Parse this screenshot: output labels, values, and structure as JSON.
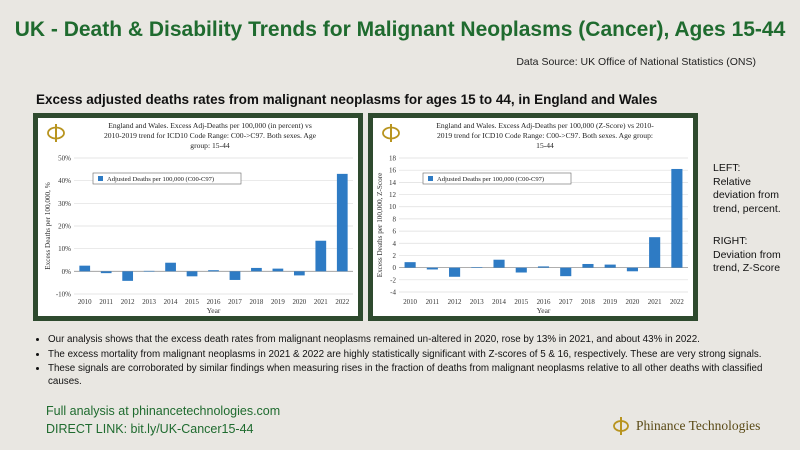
{
  "header": {
    "title": "UK - Death & Disability Trends for Malignant Neoplasms (Cancer), Ages 15-44",
    "source": "Data Source: UK Office of National Statistics (ONS)",
    "subtitle": "Excess adjusted deaths rates from malignant neoplasms for ages 15 to 44, in England and Wales"
  },
  "colors": {
    "title_green": "#1f6b2f",
    "bar_blue": "#2e7bc4",
    "panel_border": "#2e4a2e",
    "logo_gold": "#b8941f"
  },
  "notes": {
    "left_label": "LEFT:",
    "left_text": "Relative deviation from trend, percent.",
    "right_label": "RIGHT:",
    "right_text": "Deviation from trend, Z-Score"
  },
  "bullets": [
    "Our analysis shows that the excess death rates from malignant neoplasms remained un-altered in 2020, rose by 13% in 2021, and about 43% in 2022.",
    "The excess mortality from malignant neoplasms in 2021 & 2022 are highly statistically significant with Z-scores of 5 & 16, respectively. These are very strong signals.",
    "These signals are corroborated by similar findings when measuring rises in the fraction of deaths from malignant neoplasms relative to all other deaths with classified causes."
  ],
  "footer": {
    "analysis": "Full analysis at phinancetechnologies.com",
    "direct_link": "DIRECT LINK: bit.ly/UK-Cancer15-44",
    "brand": "Phinance Technologies",
    "logo_icon": "phi-logo-icon"
  },
  "chart_data": [
    {
      "type": "bar",
      "title": "England and Wales. Excess Adj-Deaths per 100,000 (in percent) vs 2010-2019 trend for ICD10 Code Range: C00->C97. Both sexes. Age group: 15-44",
      "title_lines": [
        "England and Wales. Excess Adj-Deaths per 100,000 (in percent) vs",
        "2010-2019 trend for ICD10 Code Range: C00->C97. Both sexes. Age",
        "group: 15-44"
      ],
      "xlabel": "Year",
      "ylabel": "Excess Deaths per 100,000, %",
      "categories": [
        "2010",
        "2011",
        "2012",
        "2013",
        "2014",
        "2015",
        "2016",
        "2017",
        "2018",
        "2019",
        "2020",
        "2021",
        "2022"
      ],
      "series": [
        {
          "name": "Adjusted Deaths per 100,000 (C00-C97)",
          "values": [
            2.5,
            -0.8,
            -4.2,
            0.2,
            3.8,
            -2.2,
            0.5,
            -3.8,
            1.5,
            1.2,
            -1.8,
            13.5,
            43.0
          ]
        }
      ],
      "ylim": [
        -10,
        50
      ],
      "yticks": [
        -10,
        0,
        10,
        20,
        30,
        40,
        50
      ],
      "ytick_labels": [
        "-10%",
        "0%",
        "10%",
        "20%",
        "30%",
        "40%",
        "50%"
      ],
      "grid": true,
      "legend": "upper-left"
    },
    {
      "type": "bar",
      "title": "England and Wales. Excess Adj-Deaths per 100,000 (Z-Score) vs 2010-2019 trend for ICD10 Code Range: C00->C97. Both sexes. Age group: 15-44",
      "title_lines": [
        "England and Wales. Excess Adj-Deaths per 100,000 (Z-Score) vs 2010-",
        "2019 trend for ICD10 Code Range: C00->C97. Both sexes. Age group:",
        "15-44"
      ],
      "xlabel": "Year",
      "ylabel": "Excess Deaths per 100,000, Z-Score",
      "categories": [
        "2010",
        "2011",
        "2012",
        "2013",
        "2014",
        "2015",
        "2016",
        "2017",
        "2018",
        "2019",
        "2020",
        "2021",
        "2022"
      ],
      "series": [
        {
          "name": "Adjusted Deaths per 100,000 (C00-C97)",
          "values": [
            0.9,
            -0.3,
            -1.5,
            0.05,
            1.3,
            -0.8,
            0.2,
            -1.4,
            0.6,
            0.5,
            -0.6,
            5.0,
            16.2
          ]
        }
      ],
      "ylim": [
        -4,
        18
      ],
      "yticks": [
        -4,
        -2,
        0,
        2,
        4,
        6,
        8,
        10,
        12,
        14,
        16,
        18
      ],
      "ytick_labels": [
        "-4",
        "-2",
        "0",
        "2",
        "4",
        "6",
        "8",
        "10",
        "12",
        "14",
        "16",
        "18"
      ],
      "grid": true,
      "legend": "upper-left"
    }
  ]
}
